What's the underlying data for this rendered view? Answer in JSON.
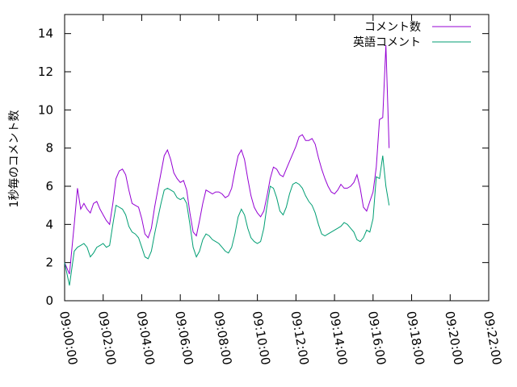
{
  "chart_data": {
    "type": "line",
    "ylabel": "1秒毎のコメント数",
    "xlabel": "",
    "ylim": [
      0,
      15
    ],
    "yticks": [
      0,
      2,
      4,
      6,
      8,
      10,
      12,
      14
    ],
    "xlim_seconds": [
      0,
      1320
    ],
    "xtick_labels": [
      "09:00:00",
      "09:02:00",
      "09:04:00",
      "09:06:00",
      "09:08:00",
      "09:10:00",
      "09:12:00",
      "09:14:00",
      "09:16:00",
      "09:18:00",
      "09:20:00",
      "09:22:00"
    ],
    "legend_position": "top-right",
    "grid": false,
    "series": [
      {
        "name": "コメント数",
        "color": "#9400d3",
        "points": [
          [
            "09:00:00",
            2.0
          ],
          [
            "09:00:15",
            1.4
          ],
          [
            "09:00:30",
            4.0
          ],
          [
            "09:00:40",
            5.9
          ],
          [
            "09:00:50",
            4.8
          ],
          [
            "09:01:00",
            5.1
          ],
          [
            "09:01:10",
            4.8
          ],
          [
            "09:01:20",
            4.6
          ],
          [
            "09:01:30",
            5.1
          ],
          [
            "09:01:40",
            5.2
          ],
          [
            "09:01:50",
            4.8
          ],
          [
            "09:02:00",
            4.5
          ],
          [
            "09:02:10",
            4.2
          ],
          [
            "09:02:20",
            4.0
          ],
          [
            "09:02:30",
            5.1
          ],
          [
            "09:02:40",
            6.4
          ],
          [
            "09:02:50",
            6.8
          ],
          [
            "09:03:00",
            6.9
          ],
          [
            "09:03:10",
            6.6
          ],
          [
            "09:03:20",
            5.8
          ],
          [
            "09:03:30",
            5.1
          ],
          [
            "09:03:40",
            5.0
          ],
          [
            "09:03:50",
            4.9
          ],
          [
            "09:04:00",
            4.3
          ],
          [
            "09:04:10",
            3.5
          ],
          [
            "09:04:20",
            3.3
          ],
          [
            "09:04:30",
            3.8
          ],
          [
            "09:04:40",
            4.9
          ],
          [
            "09:04:50",
            5.8
          ],
          [
            "09:05:00",
            6.7
          ],
          [
            "09:05:10",
            7.6
          ],
          [
            "09:05:20",
            7.9
          ],
          [
            "09:05:30",
            7.4
          ],
          [
            "09:05:40",
            6.7
          ],
          [
            "09:05:50",
            6.4
          ],
          [
            "09:06:00",
            6.2
          ],
          [
            "09:06:10",
            6.3
          ],
          [
            "09:06:20",
            5.8
          ],
          [
            "09:06:30",
            4.6
          ],
          [
            "09:06:40",
            3.6
          ],
          [
            "09:06:50",
            3.4
          ],
          [
            "09:07:00",
            4.2
          ],
          [
            "09:07:10",
            5.1
          ],
          [
            "09:07:20",
            5.8
          ],
          [
            "09:07:30",
            5.7
          ],
          [
            "09:07:40",
            5.6
          ],
          [
            "09:07:50",
            5.7
          ],
          [
            "09:08:00",
            5.7
          ],
          [
            "09:08:10",
            5.6
          ],
          [
            "09:08:20",
            5.4
          ],
          [
            "09:08:30",
            5.5
          ],
          [
            "09:08:40",
            5.9
          ],
          [
            "09:08:50",
            6.8
          ],
          [
            "09:09:00",
            7.6
          ],
          [
            "09:09:10",
            7.9
          ],
          [
            "09:09:20",
            7.4
          ],
          [
            "09:09:30",
            6.4
          ],
          [
            "09:09:40",
            5.5
          ],
          [
            "09:09:50",
            4.9
          ],
          [
            "09:10:00",
            4.6
          ],
          [
            "09:10:10",
            4.4
          ],
          [
            "09:10:20",
            4.7
          ],
          [
            "09:10:30",
            5.5
          ],
          [
            "09:10:40",
            6.4
          ],
          [
            "09:10:50",
            7.0
          ],
          [
            "09:11:00",
            6.9
          ],
          [
            "09:11:10",
            6.6
          ],
          [
            "09:11:20",
            6.5
          ],
          [
            "09:11:30",
            6.9
          ],
          [
            "09:11:40",
            7.3
          ],
          [
            "09:11:50",
            7.7
          ],
          [
            "09:12:00",
            8.1
          ],
          [
            "09:12:10",
            8.6
          ],
          [
            "09:12:20",
            8.7
          ],
          [
            "09:12:30",
            8.4
          ],
          [
            "09:12:40",
            8.4
          ],
          [
            "09:12:50",
            8.5
          ],
          [
            "09:13:00",
            8.2
          ],
          [
            "09:13:10",
            7.5
          ],
          [
            "09:13:20",
            6.9
          ],
          [
            "09:13:30",
            6.4
          ],
          [
            "09:13:40",
            6.0
          ],
          [
            "09:13:50",
            5.7
          ],
          [
            "09:14:00",
            5.6
          ],
          [
            "09:14:10",
            5.8
          ],
          [
            "09:14:20",
            6.1
          ],
          [
            "09:14:30",
            5.9
          ],
          [
            "09:14:40",
            5.9
          ],
          [
            "09:14:50",
            6.0
          ],
          [
            "09:15:00",
            6.2
          ],
          [
            "09:15:10",
            6.6
          ],
          [
            "09:15:20",
            5.9
          ],
          [
            "09:15:30",
            4.9
          ],
          [
            "09:15:40",
            4.7
          ],
          [
            "09:15:50",
            5.2
          ],
          [
            "09:16:00",
            5.7
          ],
          [
            "09:16:10",
            7.0
          ],
          [
            "09:16:20",
            9.5
          ],
          [
            "09:16:30",
            9.6
          ],
          [
            "09:16:40",
            13.4
          ],
          [
            "09:16:50",
            8.0
          ]
        ]
      },
      {
        "name": "英語コメント",
        "color": "#009e73",
        "points": [
          [
            "09:00:00",
            2.0
          ],
          [
            "09:00:15",
            0.8
          ],
          [
            "09:00:30",
            2.6
          ],
          [
            "09:00:40",
            2.8
          ],
          [
            "09:00:50",
            2.9
          ],
          [
            "09:01:00",
            3.0
          ],
          [
            "09:01:10",
            2.8
          ],
          [
            "09:01:20",
            2.3
          ],
          [
            "09:01:30",
            2.5
          ],
          [
            "09:01:40",
            2.8
          ],
          [
            "09:01:50",
            2.9
          ],
          [
            "09:02:00",
            3.0
          ],
          [
            "09:02:10",
            2.8
          ],
          [
            "09:02:20",
            2.9
          ],
          [
            "09:02:30",
            4.0
          ],
          [
            "09:02:40",
            5.0
          ],
          [
            "09:02:50",
            4.9
          ],
          [
            "09:03:00",
            4.8
          ],
          [
            "09:03:10",
            4.5
          ],
          [
            "09:03:20",
            3.9
          ],
          [
            "09:03:30",
            3.6
          ],
          [
            "09:03:40",
            3.5
          ],
          [
            "09:03:50",
            3.3
          ],
          [
            "09:04:00",
            2.8
          ],
          [
            "09:04:10",
            2.3
          ],
          [
            "09:04:20",
            2.2
          ],
          [
            "09:04:30",
            2.6
          ],
          [
            "09:04:40",
            3.5
          ],
          [
            "09:04:50",
            4.3
          ],
          [
            "09:05:00",
            5.1
          ],
          [
            "09:05:10",
            5.8
          ],
          [
            "09:05:20",
            5.9
          ],
          [
            "09:05:30",
            5.8
          ],
          [
            "09:05:40",
            5.7
          ],
          [
            "09:05:50",
            5.4
          ],
          [
            "09:06:00",
            5.3
          ],
          [
            "09:06:10",
            5.4
          ],
          [
            "09:06:20",
            5.1
          ],
          [
            "09:06:30",
            4.0
          ],
          [
            "09:06:40",
            2.8
          ],
          [
            "09:06:50",
            2.3
          ],
          [
            "09:07:00",
            2.6
          ],
          [
            "09:07:10",
            3.2
          ],
          [
            "09:07:20",
            3.5
          ],
          [
            "09:07:30",
            3.4
          ],
          [
            "09:07:40",
            3.2
          ],
          [
            "09:07:50",
            3.1
          ],
          [
            "09:08:00",
            3.0
          ],
          [
            "09:08:10",
            2.8
          ],
          [
            "09:08:20",
            2.6
          ],
          [
            "09:08:30",
            2.5
          ],
          [
            "09:08:40",
            2.8
          ],
          [
            "09:08:50",
            3.5
          ],
          [
            "09:09:00",
            4.4
          ],
          [
            "09:09:10",
            4.8
          ],
          [
            "09:09:20",
            4.5
          ],
          [
            "09:09:30",
            3.8
          ],
          [
            "09:09:40",
            3.3
          ],
          [
            "09:09:50",
            3.1
          ],
          [
            "09:10:00",
            3.0
          ],
          [
            "09:10:10",
            3.1
          ],
          [
            "09:10:20",
            3.8
          ],
          [
            "09:10:30",
            5.0
          ],
          [
            "09:10:40",
            6.0
          ],
          [
            "09:10:50",
            5.9
          ],
          [
            "09:11:00",
            5.4
          ],
          [
            "09:11:10",
            4.7
          ],
          [
            "09:11:20",
            4.5
          ],
          [
            "09:11:30",
            4.9
          ],
          [
            "09:11:40",
            5.6
          ],
          [
            "09:11:50",
            6.1
          ],
          [
            "09:12:00",
            6.2
          ],
          [
            "09:12:10",
            6.1
          ],
          [
            "09:12:20",
            5.9
          ],
          [
            "09:12:30",
            5.5
          ],
          [
            "09:12:40",
            5.2
          ],
          [
            "09:12:50",
            5.0
          ],
          [
            "09:13:00",
            4.6
          ],
          [
            "09:13:10",
            4.0
          ],
          [
            "09:13:20",
            3.5
          ],
          [
            "09:13:30",
            3.4
          ],
          [
            "09:13:40",
            3.5
          ],
          [
            "09:13:50",
            3.6
          ],
          [
            "09:14:00",
            3.7
          ],
          [
            "09:14:10",
            3.8
          ],
          [
            "09:14:20",
            3.9
          ],
          [
            "09:14:30",
            4.1
          ],
          [
            "09:14:40",
            4.0
          ],
          [
            "09:14:50",
            3.8
          ],
          [
            "09:15:00",
            3.6
          ],
          [
            "09:15:10",
            3.2
          ],
          [
            "09:15:20",
            3.1
          ],
          [
            "09:15:30",
            3.3
          ],
          [
            "09:15:40",
            3.7
          ],
          [
            "09:15:50",
            3.6
          ],
          [
            "09:16:00",
            4.3
          ],
          [
            "09:16:10",
            6.5
          ],
          [
            "09:16:20",
            6.4
          ],
          [
            "09:16:30",
            7.6
          ],
          [
            "09:16:40",
            6.0
          ],
          [
            "09:16:50",
            5.0
          ]
        ]
      }
    ]
  }
}
